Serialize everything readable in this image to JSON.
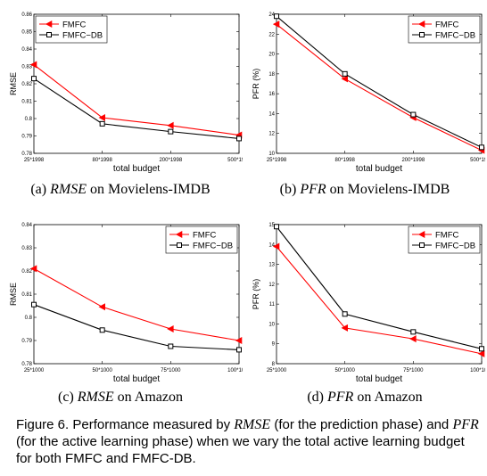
{
  "chart_data": [
    {
      "type": "line",
      "categories": [
        "25*1998",
        "80*1998",
        "200*1998",
        "500*1998"
      ],
      "series": [
        {
          "name": "FMFC",
          "values": [
            0.831,
            0.8005,
            0.796,
            0.7905
          ],
          "color": "#ff0000",
          "marker": "triangle-left"
        },
        {
          "name": "FMFC−DB",
          "values": [
            0.823,
            0.797,
            0.7925,
            0.7885
          ],
          "color": "#000000",
          "marker": "square"
        }
      ],
      "xlabel": "total budget",
      "ylabel": "RMSE",
      "ylim": [
        0.78,
        0.86
      ],
      "yticks": [
        "0.78",
        "0.79",
        "0.8",
        "0.81",
        "0.82",
        "0.83",
        "0.84",
        "0.85",
        "0.86"
      ],
      "legend": "top-left",
      "caption": {
        "prefix": "(a) ",
        "metric": "RMSE",
        "suffix": " on Movielens-IMDB"
      }
    },
    {
      "type": "line",
      "categories": [
        "25*1998",
        "80*1998",
        "200*1998",
        "500*1998"
      ],
      "series": [
        {
          "name": "FMFC",
          "values": [
            23.0,
            17.5,
            13.6,
            10.3
          ],
          "color": "#ff0000",
          "marker": "triangle-left"
        },
        {
          "name": "FMFC−DB",
          "values": [
            23.8,
            18.0,
            13.9,
            10.6
          ],
          "color": "#000000",
          "marker": "square"
        }
      ],
      "xlabel": "total budget",
      "ylabel": "PFR (%)",
      "ylim": [
        10,
        24
      ],
      "yticks": [
        "10",
        "12",
        "14",
        "16",
        "18",
        "20",
        "22",
        "24"
      ],
      "legend": "top-right",
      "caption": {
        "prefix": "(b) ",
        "metric": "PFR",
        "suffix": " on Movielens-IMDB"
      }
    },
    {
      "type": "line",
      "categories": [
        "25*1000",
        "50*1000",
        "75*1000",
        "100*1000"
      ],
      "series": [
        {
          "name": "FMFC",
          "values": [
            0.821,
            0.8045,
            0.795,
            0.79
          ],
          "color": "#ff0000",
          "marker": "triangle-left"
        },
        {
          "name": "FMFC−DB",
          "values": [
            0.8055,
            0.7945,
            0.7875,
            0.786
          ],
          "color": "#000000",
          "marker": "square"
        }
      ],
      "xlabel": "total budget",
      "ylabel": "RMSE",
      "ylim": [
        0.78,
        0.84
      ],
      "yticks": [
        "0.78",
        "0.79",
        "0.8",
        "0.81",
        "0.82",
        "0.83",
        "0.84"
      ],
      "legend": "top-right",
      "caption": {
        "prefix": "(c) ",
        "metric": "RMSE",
        "suffix": " on Amazon"
      }
    },
    {
      "type": "line",
      "categories": [
        "25*1000",
        "50*1000",
        "75*1000",
        "100*1000"
      ],
      "series": [
        {
          "name": "FMFC",
          "values": [
            13.9,
            9.8,
            9.25,
            8.5
          ],
          "color": "#ff0000",
          "marker": "triangle-left"
        },
        {
          "name": "FMFC−DB",
          "values": [
            14.9,
            10.5,
            9.6,
            8.75
          ],
          "color": "#000000",
          "marker": "square"
        }
      ],
      "xlabel": "total budget",
      "ylabel": "PFR (%)",
      "ylim": [
        8,
        15
      ],
      "yticks": [
        "8",
        "9",
        "10",
        "11",
        "12",
        "13",
        "14",
        "15"
      ],
      "legend": "top-right",
      "caption": {
        "prefix": "(d) ",
        "metric": "PFR",
        "suffix": " on Amazon"
      }
    }
  ],
  "figure_caption": {
    "part1": "Figure 6. Performance measured by ",
    "m1": "RMSE",
    "part2": " (for the prediction phase) and ",
    "m2": "PFR",
    "part3": " (for the active learning phase) when we vary the total active learning budget for both FMFC and FMFC-DB."
  }
}
